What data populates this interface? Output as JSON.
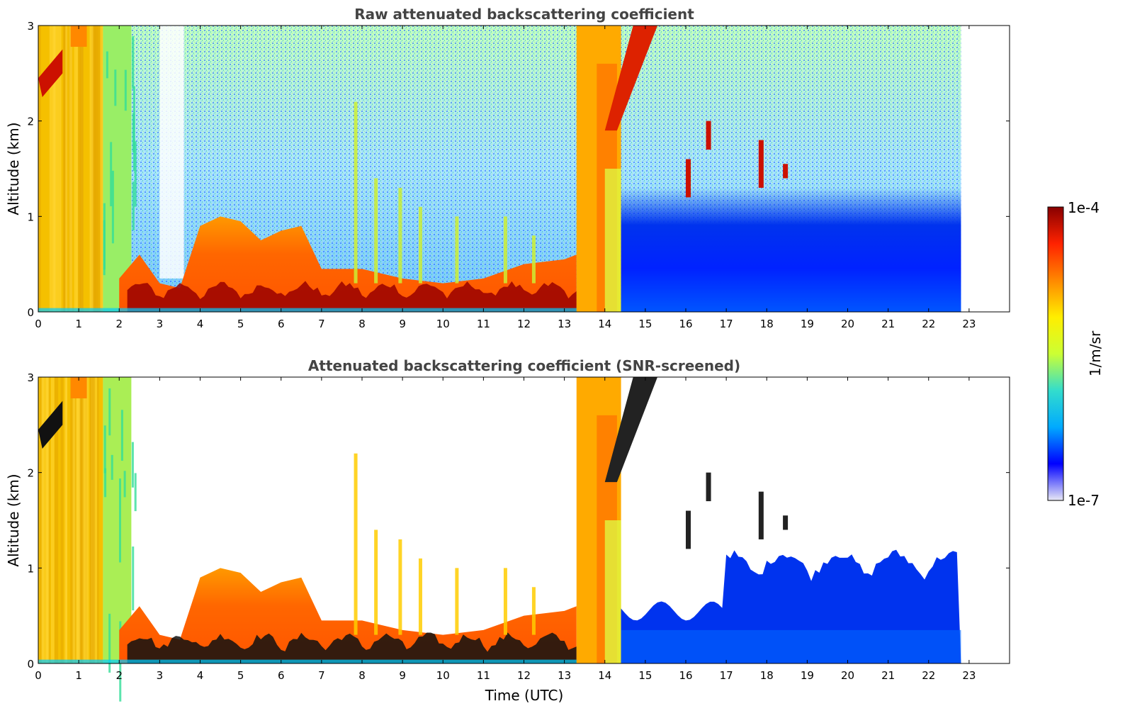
{
  "chart_data": [
    {
      "type": "heatmap",
      "title": "Raw attenuated backscattering coefficient",
      "xlabel": "",
      "ylabel": "Altitude (km)",
      "xlim": [
        0,
        24
      ],
      "ylim": [
        0,
        3
      ],
      "x_ticks": [
        "0",
        "1",
        "2",
        "3",
        "4",
        "5",
        "6",
        "7",
        "8",
        "9",
        "10",
        "11",
        "12",
        "13",
        "14",
        "15",
        "16",
        "17",
        "18",
        "19",
        "20",
        "21",
        "22",
        "23"
      ],
      "y_ticks": [
        "0",
        "1",
        "2",
        "3"
      ],
      "data_extent_hours": [
        0,
        22.8
      ],
      "color_scale": "log",
      "features": [
        {
          "name": "boundary layer aerosol",
          "t_start": 0,
          "t_end": 13.3,
          "alt_top_km": 0.4,
          "level": "high"
        },
        {
          "name": "cloud",
          "t_start": 13.3,
          "t_end": 14.4,
          "alt_top_km": 3.0,
          "level": "high"
        },
        {
          "name": "clear air",
          "t_start": 14.4,
          "t_end": 22.8,
          "alt_top_km": 3.0,
          "level": "low"
        }
      ]
    },
    {
      "type": "heatmap",
      "title": "Attenuated backscattering coefficient (SNR-screened)",
      "xlabel": "Time (UTC)",
      "ylabel": "Altitude (km)",
      "xlim": [
        0,
        24
      ],
      "ylim": [
        0,
        3
      ],
      "x_ticks": [
        "0",
        "1",
        "2",
        "3",
        "4",
        "5",
        "6",
        "7",
        "8",
        "9",
        "10",
        "11",
        "12",
        "13",
        "14",
        "15",
        "16",
        "17",
        "18",
        "19",
        "20",
        "21",
        "22",
        "23"
      ],
      "y_ticks": [
        "0",
        "1",
        "2",
        "3"
      ],
      "data_extent_hours": [
        0,
        22.8
      ],
      "color_scale": "log"
    }
  ],
  "colorbar": {
    "max_label": "1e-4",
    "min_label": "1e-7",
    "unit_label": "1/m/sr",
    "colormap": "jet",
    "colors": [
      "#e8e8f5",
      "#0000ff",
      "#00aaff",
      "#33ddcc",
      "#ccff33",
      "#ffee00",
      "#ff8800",
      "#ff2200",
      "#880000"
    ]
  }
}
